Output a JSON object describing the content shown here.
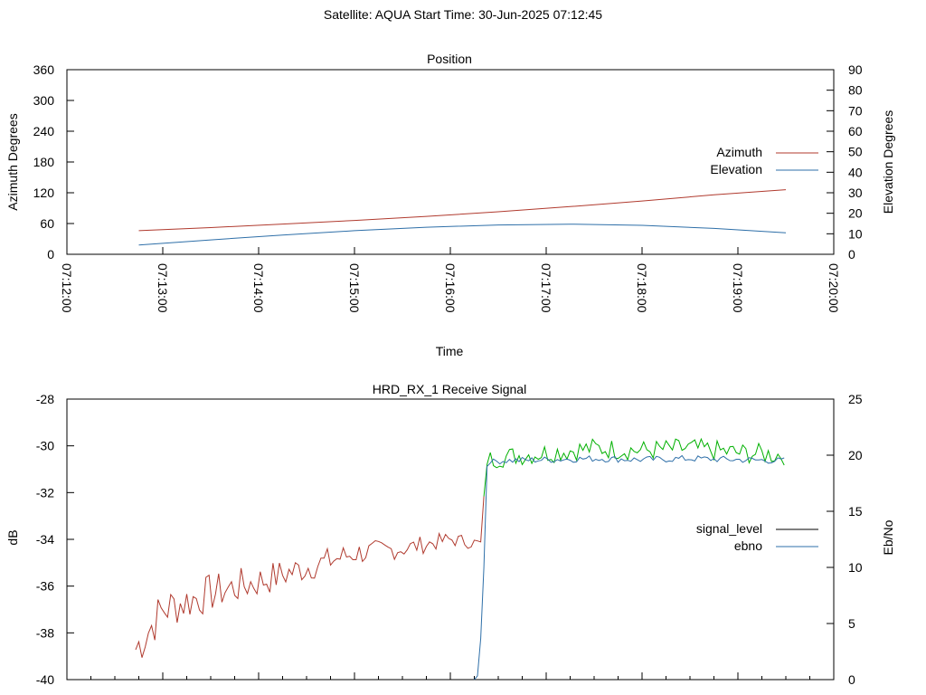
{
  "figure": {
    "title": "Satellite: AQUA    Start Time: 30-Jun-2025 07:12:45"
  },
  "chart_data": [
    {
      "type": "line",
      "title": "Position",
      "xlabel": "Time",
      "ylabel": "Azimuth Degrees",
      "y2label": "Elevation Degrees",
      "x_ticks": [
        "07:12:00",
        "07:13:00",
        "07:14:00",
        "07:15:00",
        "07:16:00",
        "07:17:00",
        "07:18:00",
        "07:19:00",
        "07:20:00"
      ],
      "xlim": [
        "07:12:00",
        "07:20:00"
      ],
      "ylim": [
        0,
        360
      ],
      "y_ticks": [
        "0",
        "60",
        "120",
        "180",
        "240",
        "300",
        "360"
      ],
      "y2lim": [
        0,
        90
      ],
      "y2_ticks": [
        "0",
        "10",
        "20",
        "30",
        "40",
        "50",
        "60",
        "70",
        "80",
        "90"
      ],
      "legend_position": "right",
      "grid": false,
      "series": [
        {
          "name": "Azimuth",
          "axis": "y",
          "color": "#b03a2e",
          "x": [
            "07:12:45",
            "07:13:30",
            "07:14:15",
            "07:15:00",
            "07:15:45",
            "07:16:30",
            "07:17:15",
            "07:18:00",
            "07:18:45",
            "07:19:30"
          ],
          "y": [
            46,
            52,
            59,
            66,
            74,
            83,
            93,
            104,
            116,
            126
          ]
        },
        {
          "name": "Elevation",
          "axis": "y2",
          "color": "#2e6fa8",
          "x": [
            "07:12:45",
            "07:13:30",
            "07:14:15",
            "07:15:00",
            "07:15:45",
            "07:16:30",
            "07:17:15",
            "07:18:00",
            "07:18:45",
            "07:19:30"
          ],
          "y": [
            4.5,
            7.0,
            9.4,
            11.5,
            13.2,
            14.3,
            14.7,
            14.1,
            12.6,
            10.5
          ]
        }
      ]
    },
    {
      "type": "line",
      "title": "HRD_RX_1 Receive Signal",
      "xlabel": "",
      "ylabel": "dB",
      "y2label": "Eb/No",
      "ylim": [
        -40,
        -28
      ],
      "y_ticks": [
        "-40",
        "-38",
        "-36",
        "-34",
        "-32",
        "-30",
        "-28"
      ],
      "y2lim": [
        0,
        25
      ],
      "y2_ticks": [
        "0",
        "5",
        "10",
        "15",
        "20",
        "25"
      ],
      "legend_position": "right",
      "grid": false,
      "series": [
        {
          "name": "signal_level",
          "axis": "y",
          "color_before_lock": "#b03a2e",
          "color_after_lock": "#00b000",
          "x": [
            "07:12:43",
            "07:13:00",
            "07:13:30",
            "07:14:00",
            "07:14:30",
            "07:15:00",
            "07:15:30",
            "07:16:00",
            "07:16:20",
            "07:16:22",
            "07:16:24",
            "07:16:30",
            "07:17:00",
            "07:17:30",
            "07:18:00",
            "07:18:30",
            "07:19:00",
            "07:19:30"
          ],
          "y": [
            -38.7,
            -37.0,
            -36.3,
            -35.8,
            -35.2,
            -34.6,
            -34.4,
            -34.0,
            -34.2,
            -30.5,
            -30.6,
            -30.5,
            -30.3,
            -30.1,
            -30.2,
            -30.1,
            -30.3,
            -30.4
          ]
        },
        {
          "name": "ebno",
          "axis": "y2",
          "color": "#2e6fa8",
          "x": [
            "07:16:15",
            "07:16:18",
            "07:16:21",
            "07:16:23",
            "07:16:25",
            "07:16:30",
            "07:17:00",
            "07:17:30",
            "07:18:00",
            "07:18:30",
            "07:19:00",
            "07:19:30"
          ],
          "y": [
            0.0,
            0.5,
            10.0,
            19.0,
            19.3,
            19.5,
            19.6,
            19.7,
            19.6,
            19.7,
            19.6,
            19.5
          ]
        }
      ]
    }
  ]
}
